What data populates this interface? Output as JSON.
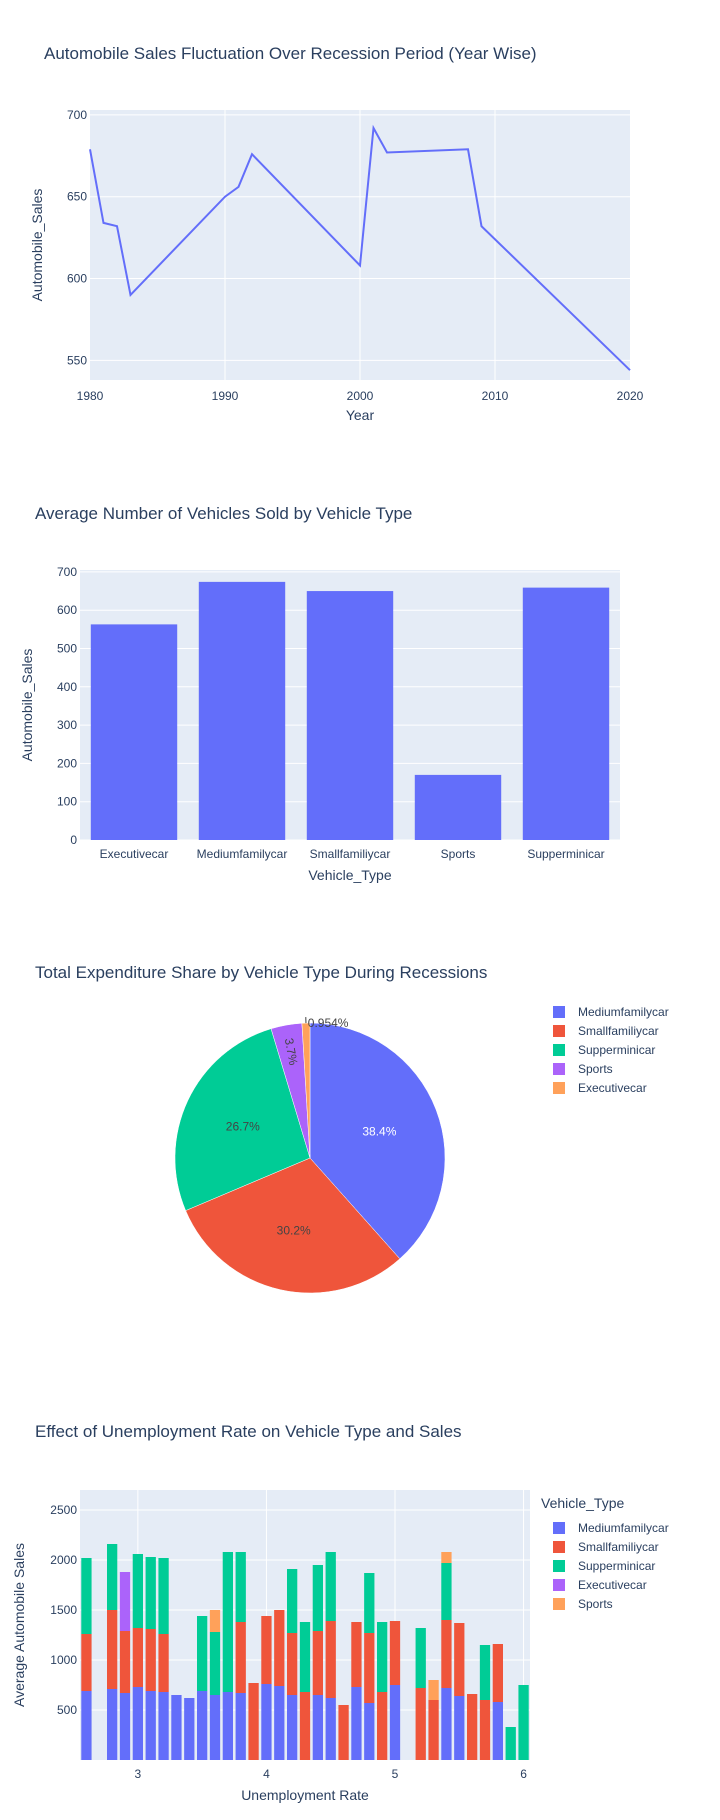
{
  "chart_data": [
    {
      "type": "line",
      "title": "Automobile Sales Fluctuation Over Recession Period (Year Wise)",
      "xlabel": "Year",
      "ylabel": "Automobile_Sales",
      "xlim": [
        1980,
        2020
      ],
      "ylim": [
        538,
        703
      ],
      "xticks": [
        1980,
        1990,
        2000,
        2010,
        2020
      ],
      "yticks": [
        550,
        600,
        650,
        700
      ],
      "grid": true,
      "color": "#636efa",
      "x": [
        1980,
        1981,
        1982,
        1983,
        1990,
        1991,
        1992,
        2000,
        2001,
        2002,
        2008,
        2009,
        2020
      ],
      "y": [
        679,
        634,
        632,
        590,
        650,
        656,
        676,
        608,
        692,
        677,
        679,
        632,
        544
      ]
    },
    {
      "type": "bar",
      "title": "Average Number of Vehicles Sold by Vehicle Type",
      "xlabel": "Vehicle_Type",
      "ylabel": "Automobile_Sales",
      "categories": [
        "Executivecar",
        "Mediumfamilycar",
        "Smallfamiliycar",
        "Sports",
        "Supperminicar"
      ],
      "values": [
        563,
        674,
        650,
        170,
        659
      ],
      "ylim": [
        0,
        705
      ],
      "yticks": [
        0,
        100,
        200,
        300,
        400,
        500,
        600,
        700
      ],
      "color": "#636efa"
    },
    {
      "type": "pie",
      "title": "Total Expenditure Share by Vehicle Type During Recessions",
      "legend_position": "right",
      "slices": [
        {
          "label": "Mediumfamilycar",
          "value": 38.4,
          "text": "38.4%",
          "color": "#636efa",
          "text_color": "#ffffff"
        },
        {
          "label": "Smallfamiliycar",
          "value": 30.2,
          "text": "30.2%",
          "color": "#ef553b",
          "text_color": "#444444"
        },
        {
          "label": "Supperminicar",
          "value": 26.7,
          "text": "26.7%",
          "color": "#00cc96",
          "text_color": "#444444"
        },
        {
          "label": "Sports",
          "value": 3.7,
          "text": "3.7%",
          "color": "#ab63fa",
          "text_color": "#444444"
        },
        {
          "label": "Executivecar",
          "value": 0.954,
          "text": "0.954%",
          "color": "#ffa15a",
          "text_color": "#444444"
        }
      ]
    },
    {
      "type": "bar",
      "stacked": true,
      "title": "Effect of Unemployment Rate on Vehicle Type and Sales",
      "xlabel": "Unemployment Rate",
      "ylabel": "Average Automobile Sales",
      "legend_title": "Vehicle_Type",
      "legend_position": "right",
      "xlim": [
        2.55,
        6.05
      ],
      "ylim": [
        0,
        2700
      ],
      "xticks": [
        3,
        4,
        5,
        6
      ],
      "yticks": [
        500,
        1000,
        1500,
        2000,
        2500
      ],
      "bar_width": 0.08,
      "x": [
        2.6,
        2.8,
        2.9,
        3.0,
        3.1,
        3.2,
        3.3,
        3.4,
        3.5,
        3.6,
        3.7,
        3.8,
        3.9,
        4.0,
        4.1,
        4.2,
        4.3,
        4.4,
        4.5,
        4.6,
        4.7,
        4.8,
        4.9,
        5.0,
        5.2,
        5.3,
        5.4,
        5.5,
        5.6,
        5.7,
        5.8,
        5.9,
        6.0
      ],
      "series": [
        {
          "name": "Mediumfamilycar",
          "color": "#636efa",
          "values": [
            690,
            710,
            670,
            730,
            690,
            680,
            650,
            620,
            690,
            650,
            680,
            670,
            0,
            760,
            740,
            650,
            0,
            650,
            620,
            0,
            730,
            570,
            0,
            750,
            0,
            0,
            720,
            640,
            0,
            0,
            580,
            0,
            0
          ]
        },
        {
          "name": "Smallfamiliycar",
          "color": "#ef553b",
          "values": [
            570,
            790,
            620,
            590,
            620,
            580,
            0,
            0,
            0,
            0,
            0,
            710,
            770,
            680,
            760,
            620,
            680,
            640,
            770,
            550,
            650,
            700,
            680,
            640,
            720,
            600,
            680,
            730,
            660,
            600,
            580,
            0,
            0
          ]
        },
        {
          "name": "Supperminicar",
          "color": "#00cc96",
          "values": [
            760,
            660,
            0,
            740,
            720,
            760,
            0,
            0,
            750,
            630,
            1400,
            700,
            0,
            0,
            0,
            640,
            700,
            660,
            690,
            0,
            0,
            600,
            700,
            0,
            600,
            0,
            570,
            0,
            0,
            550,
            0,
            330,
            750
          ]
        },
        {
          "name": "Executivecar",
          "color": "#ab63fa",
          "values": [
            0,
            0,
            590,
            0,
            0,
            0,
            0,
            0,
            0,
            0,
            0,
            0,
            0,
            0,
            0,
            0,
            0,
            0,
            0,
            0,
            0,
            0,
            0,
            0,
            0,
            0,
            0,
            0,
            0,
            0,
            0,
            0,
            0
          ]
        },
        {
          "name": "Sports",
          "color": "#ffa15a",
          "values": [
            0,
            0,
            0,
            0,
            0,
            0,
            0,
            0,
            0,
            220,
            0,
            0,
            0,
            0,
            0,
            0,
            0,
            0,
            0,
            0,
            0,
            0,
            0,
            0,
            0,
            200,
            110,
            0,
            0,
            0,
            0,
            0,
            0
          ]
        }
      ],
      "legend_order": [
        "Mediumfamilycar",
        "Smallfamiliycar",
        "Supperminicar",
        "Executivecar",
        "Sports"
      ]
    }
  ]
}
